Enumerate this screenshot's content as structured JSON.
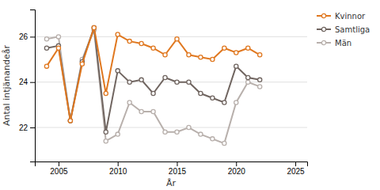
{
  "chart_data": {
    "type": "line",
    "xlabel": "År",
    "ylabel": "Antal intjänandeår",
    "x": [
      2004,
      2005,
      2006,
      2007,
      2008,
      2009,
      2010,
      2011,
      2012,
      2013,
      2014,
      2015,
      2016,
      2017,
      2018,
      2019,
      2020,
      2021,
      2022
    ],
    "series": [
      {
        "name": "Kvinnor",
        "color": "#e07820",
        "values": [
          24.7,
          25.5,
          22.3,
          24.8,
          26.4,
          23.5,
          26.1,
          25.8,
          25.7,
          25.5,
          25.2,
          25.9,
          25.2,
          25.1,
          25.0,
          25.5,
          25.3,
          25.5,
          25.2
        ]
      },
      {
        "name": "Samtliga",
        "color": "#706560",
        "values": [
          25.5,
          25.6,
          22.3,
          24.9,
          26.4,
          21.8,
          24.5,
          24.0,
          24.1,
          23.5,
          24.2,
          24.0,
          24.0,
          23.5,
          23.3,
          23.1,
          24.7,
          24.2,
          24.1
        ]
      },
      {
        "name": "Män",
        "color": "#b8b0ac",
        "values": [
          25.9,
          26.0,
          22.3,
          25.0,
          26.3,
          21.4,
          21.7,
          23.1,
          22.7,
          22.7,
          21.8,
          21.8,
          22.0,
          21.7,
          21.5,
          21.3,
          23.1,
          24.0,
          23.8
        ]
      }
    ],
    "xlim": [
      2003,
      2026
    ],
    "xticks": [
      2005,
      2010,
      2015,
      2020,
      2025
    ],
    "ylim": [
      20.5,
      27.2
    ],
    "yticks": [
      22,
      24,
      26
    ],
    "grid": true,
    "legend": "right",
    "marker": "circle"
  }
}
